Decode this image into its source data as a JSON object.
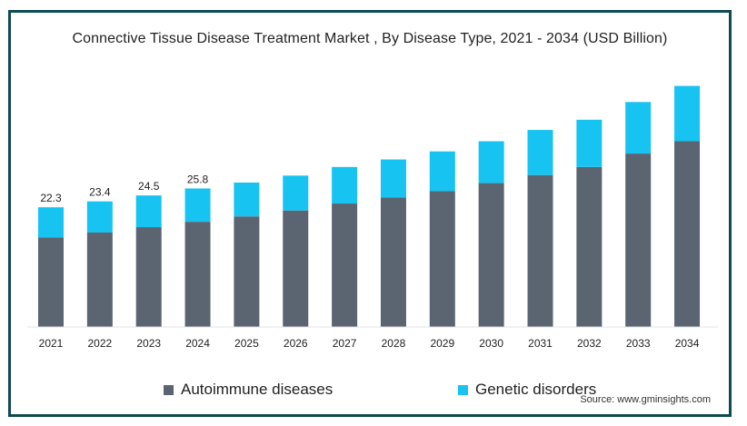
{
  "title": "Connective Tissue Disease Treatment Market , By Disease Type, 2021 - 2034 (USD Billion)",
  "source": "Source: www.gminsights.com",
  "colors": {
    "autoimmune": "#5b6571",
    "genetic": "#17c3f0",
    "frame": "#0f4a52"
  },
  "chart_data": {
    "type": "bar",
    "stacked": true,
    "title": "Connective Tissue Disease Treatment Market , By Disease Type, 2021 - 2034 (USD Billion)",
    "categories": [
      "2021",
      "2022",
      "2023",
      "2024",
      "2025",
      "2026",
      "2027",
      "2028",
      "2029",
      "2030",
      "2031",
      "2032",
      "2033",
      "2034"
    ],
    "series": [
      {
        "name": "Autoimmune diseases",
        "values": [
          16.7,
          17.6,
          18.6,
          19.6,
          20.6,
          21.7,
          23.0,
          24.1,
          25.3,
          26.8,
          28.3,
          29.8,
          32.3,
          34.6
        ]
      },
      {
        "name": "Genetic disorders",
        "values": [
          5.6,
          5.8,
          5.9,
          6.2,
          6.3,
          6.5,
          6.8,
          7.1,
          7.4,
          7.8,
          8.4,
          8.8,
          9.6,
          10.3
        ]
      }
    ],
    "data_labels": [
      "22.3",
      "23.4",
      "24.5",
      "25.8",
      "",
      "",
      "",
      "",
      "",
      "",
      "",
      "",
      "",
      ""
    ],
    "totals": [
      22.3,
      23.4,
      24.5,
      25.8,
      26.9,
      28.2,
      29.8,
      31.2,
      32.7,
      34.6,
      36.7,
      38.6,
      41.9,
      44.9
    ],
    "ylim": [
      0,
      45
    ],
    "xlabel": "",
    "ylabel": "",
    "grid": false,
    "legend_position": "bottom"
  },
  "legend": {
    "autoimmune_label": "Autoimmune diseases",
    "genetic_label": "Genetic disorders"
  }
}
